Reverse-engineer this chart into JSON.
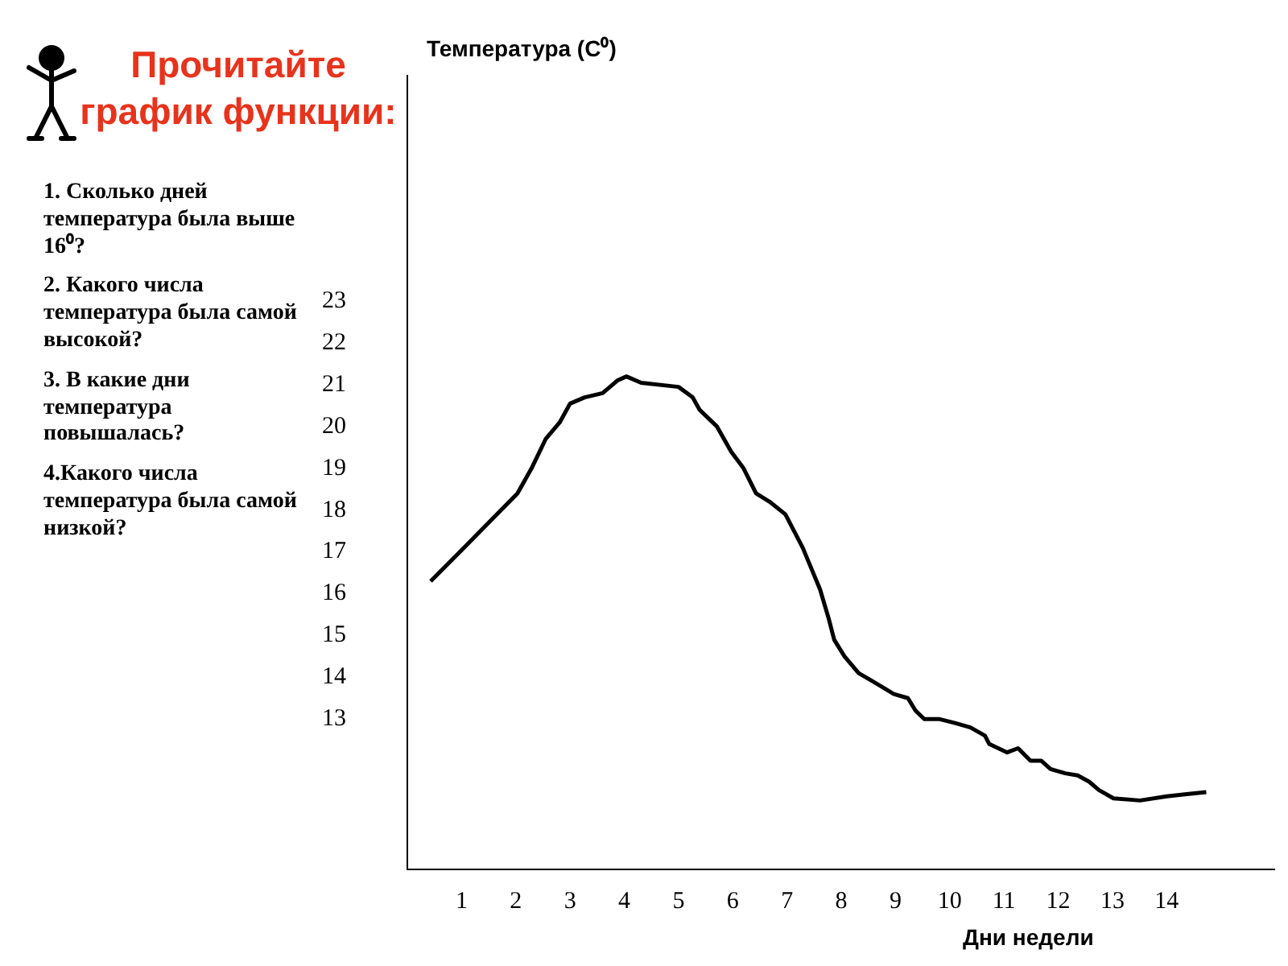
{
  "chart_data": {
    "type": "line",
    "title": "Прочитайте график функции:",
    "ylabel": "Температура (C⁰)",
    "xlabel": "Дни недели",
    "annotations": [
      "1. Сколько дней температура была выше 16⁰?",
      "2. Какого числа температура была самой высокой?",
      "3. В какие дни температура повышалась?",
      "4.Какого числа температура была самой низкой?"
    ],
    "x": [
      0.43,
      0.97,
      1.5,
      2.03,
      2.29,
      2.55,
      2.81,
      3.0,
      3.27,
      3.6,
      3.87,
      4.04,
      4.31,
      5.0,
      5.26,
      5.39,
      5.71,
      5.84,
      5.97,
      6.2,
      6.43,
      6.68,
      6.97,
      7.29,
      7.61,
      7.77,
      7.87,
      8.06,
      8.32,
      8.65,
      8.97,
      9.23,
      9.37,
      9.53,
      9.8,
      10.11,
      10.38,
      10.65,
      10.73,
      11.06,
      11.26,
      11.49,
      11.69,
      11.86,
      12.13,
      12.36,
      12.57,
      12.75,
      13.02,
      13.51,
      14.0,
      14.37,
      14.73
    ],
    "values": [
      16.3,
      17.0,
      17.7,
      18.4,
      19.0,
      19.7,
      20.1,
      20.55,
      20.7,
      20.8,
      21.1,
      21.2,
      21.05,
      20.95,
      20.7,
      20.4,
      20.0,
      19.7,
      19.4,
      19.0,
      18.4,
      18.2,
      17.9,
      17.1,
      16.1,
      15.4,
      14.9,
      14.5,
      14.1,
      13.85,
      13.6,
      13.5,
      13.2,
      13.0,
      13.0,
      12.9,
      12.8,
      12.6,
      12.4,
      12.2,
      12.3,
      12.0,
      12.0,
      11.8,
      11.7,
      11.65,
      11.5,
      11.3,
      11.1,
      11.05,
      11.15,
      11.2,
      11.25
    ],
    "color": "#000000",
    "xlim": [
      0,
      16
    ],
    "ylim": [
      9.4,
      28.4
    ],
    "xticks": [
      1,
      2,
      3,
      4,
      5,
      6,
      7,
      8,
      9,
      10,
      11,
      12,
      13,
      14
    ],
    "yticks": [
      13,
      14,
      15,
      16,
      17,
      18,
      19,
      20,
      21,
      22,
      23
    ]
  }
}
